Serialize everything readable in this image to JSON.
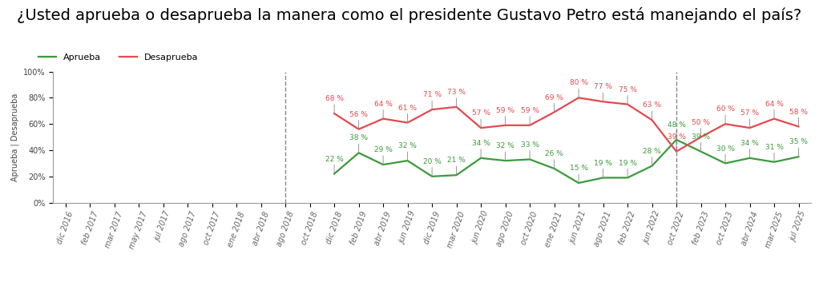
{
  "chart_data": {
    "type": "line",
    "title": "¿Usted aprueba o desaprueba la manera como el presidente Gustavo Petro está manejando el país?",
    "y_label": "Aprueba | Desaprueba",
    "categories": [
      "dic 2016",
      "feb 2017",
      "mar 2017",
      "may 2017",
      "jul 2017",
      "ago 2017",
      "oct 2017",
      "ene 2018",
      "abr 2018",
      "ago 2018",
      "oct 2018",
      "dic 2018",
      "feb 2019",
      "abr 2019",
      "jun 2019",
      "dic 2019",
      "mar 2020",
      "jun 2020",
      "ago 2020",
      "oct 2020",
      "ene 2021",
      "jun 2021",
      "ago 2021",
      "feb 2022",
      "jun 2022",
      "oct 2022",
      "feb 2023",
      "oct 2023",
      "abr 2024",
      "mar 2025",
      "jul 2025"
    ],
    "series": [
      {
        "name": "Aprueba",
        "color": "#3a9a3a",
        "line_style": "solid",
        "values": [
          null,
          null,
          null,
          null,
          null,
          null,
          null,
          null,
          null,
          null,
          null,
          22,
          38,
          29,
          32,
          20,
          21,
          34,
          32,
          33,
          26,
          15,
          19,
          19,
          28,
          48,
          39,
          30,
          34,
          31,
          35
        ],
        "value_labels": [
          null,
          null,
          null,
          null,
          null,
          null,
          null,
          null,
          null,
          null,
          null,
          "22 %",
          "38 %",
          "29 %",
          "32 %",
          "20 %",
          "21 %",
          "34 %",
          "32 %",
          "33 %",
          "26 %",
          "15 %",
          "19 %",
          "19 %",
          "28 %",
          "48 %",
          "39 %",
          "30 %",
          "34 %",
          "31 %",
          "35 %"
        ]
      },
      {
        "name": "Desaprueba",
        "color": "#e5484d",
        "line_style": "solid",
        "values": [
          null,
          null,
          null,
          null,
          null,
          null,
          null,
          null,
          null,
          null,
          null,
          68,
          56,
          64,
          61,
          71,
          73,
          57,
          59,
          59,
          69,
          80,
          77,
          75,
          63,
          39,
          50,
          60,
          57,
          64,
          58
        ],
        "value_labels": [
          null,
          null,
          null,
          null,
          null,
          null,
          null,
          null,
          null,
          null,
          null,
          "68 %",
          "56 %",
          "64 %",
          "61 %",
          "71 %",
          "73 %",
          "57 %",
          "59 %",
          "59 %",
          "69 %",
          "80 %",
          "77 %",
          "75 %",
          "63 %",
          "39 %",
          "50 %",
          "60 %",
          "57 %",
          "64 %",
          "58 %"
        ]
      }
    ],
    "ylim": [
      0,
      100
    ],
    "yticks": [
      {
        "value": 0,
        "label": "0%"
      },
      {
        "value": 20,
        "label": "20%"
      },
      {
        "value": 40,
        "label": "40%"
      },
      {
        "value": 60,
        "label": "60%"
      },
      {
        "value": 80,
        "label": "80%"
      },
      {
        "value": 100,
        "label": "100%"
      }
    ],
    "grid": false,
    "legend": "upper left",
    "data_labels": true,
    "vertical_lines": [
      "ago 2018",
      "oct 2022"
    ]
  }
}
